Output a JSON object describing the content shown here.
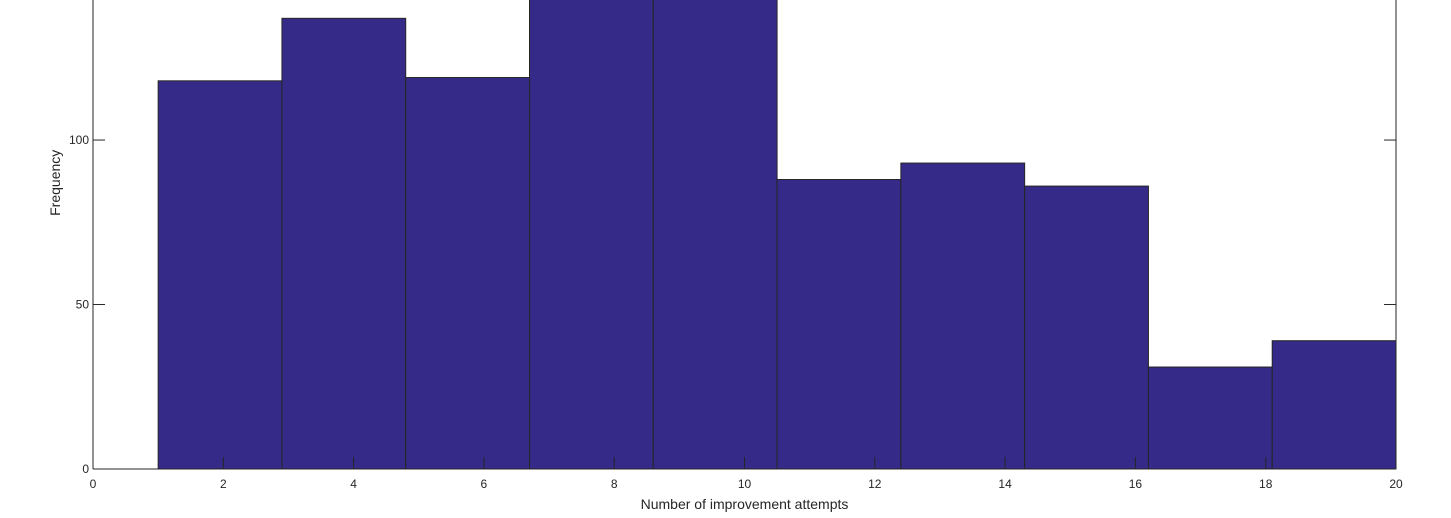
{
  "chart_data": {
    "type": "bar",
    "title": "",
    "xlabel": "Number of improvement attempts",
    "ylabel": "Frequency",
    "xlim": [
      0,
      20
    ],
    "ylim": [
      0,
      145
    ],
    "xticks": [
      0,
      2,
      4,
      6,
      8,
      10,
      12,
      14,
      16,
      18,
      20
    ],
    "yticks": [
      0,
      50,
      100
    ],
    "grid": false,
    "legend": "none",
    "bin_edges": [
      1,
      2.9,
      4.8,
      6.7,
      8.6,
      10.5,
      12.4,
      14.3,
      16.2,
      18.1,
      20
    ],
    "values": [
      118,
      137,
      119,
      146,
      143,
      88,
      93,
      86,
      31,
      39
    ],
    "colors": {
      "bar_fill": "#352a87",
      "bar_edge": "#262626",
      "axis": "#262626",
      "background": "#ffffff"
    }
  }
}
